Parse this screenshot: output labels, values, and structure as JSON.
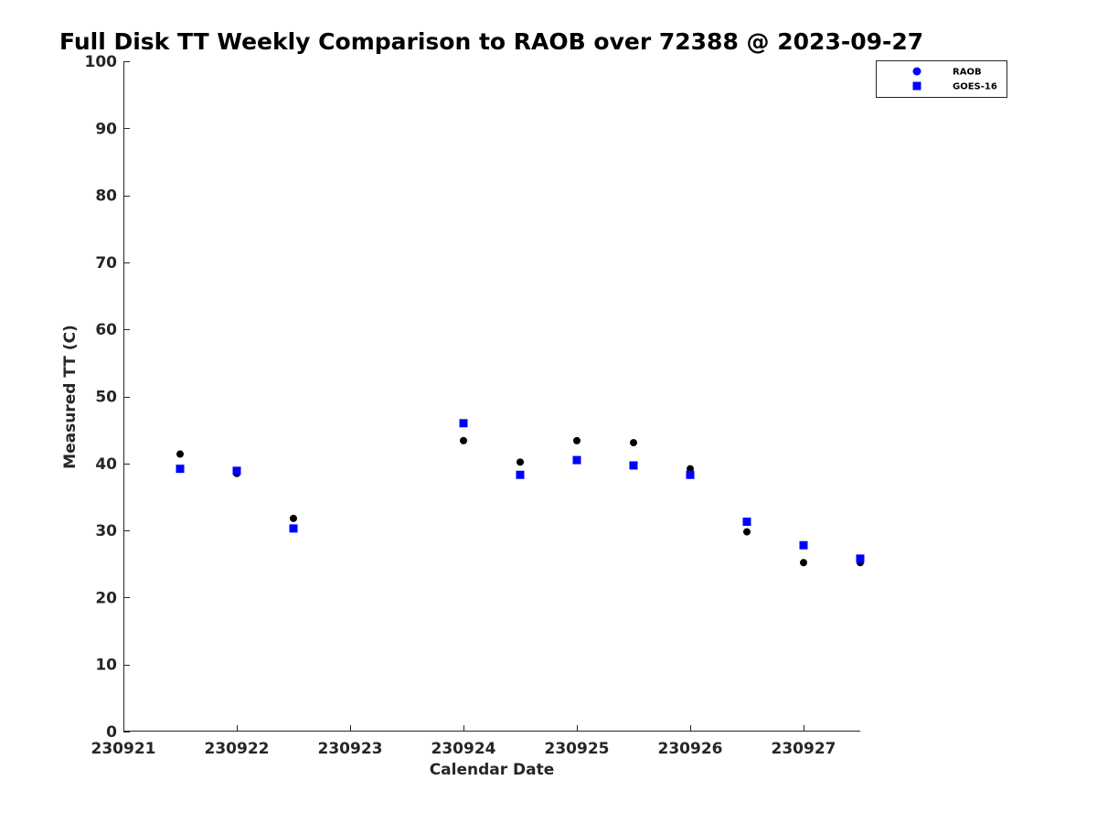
{
  "chart_data": {
    "type": "scatter",
    "title": "Full Disk TT Weekly Comparison to RAOB over 72388 @ 2023-09-27",
    "xlabel": "Calendar Date",
    "ylabel": "Measured TT (C)",
    "xlim": [
      0,
      6.5
    ],
    "ylim": [
      0,
      100
    ],
    "x_ticks": [
      0,
      1,
      2,
      3,
      4,
      5,
      6
    ],
    "x_tick_labels": [
      "230921",
      "230922",
      "230923",
      "230924",
      "230925",
      "230926",
      "230927"
    ],
    "y_ticks": [
      0,
      10,
      20,
      30,
      40,
      50,
      60,
      70,
      80,
      90,
      100
    ],
    "y_tick_labels": [
      "0",
      "10",
      "20",
      "30",
      "40",
      "50",
      "60",
      "70",
      "80",
      "90",
      "100"
    ],
    "grid": false,
    "legend_position": "top-right",
    "series": [
      {
        "name": "RAOB",
        "marker": "circle",
        "color": "#000000",
        "legend_color": "#0000ff",
        "x": [
          0.5,
          1.0,
          1.5,
          3.0,
          3.5,
          4.0,
          4.5,
          5.0,
          5.5,
          6.0,
          6.5
        ],
        "values": [
          41.4,
          38.5,
          31.8,
          43.4,
          40.2,
          43.4,
          43.1,
          39.2,
          29.8,
          25.2,
          25.2
        ]
      },
      {
        "name": "GOES-16",
        "marker": "square",
        "color": "#0000ff",
        "legend_color": "#0000ff",
        "x": [
          0.5,
          1.0,
          1.5,
          3.0,
          3.5,
          4.0,
          4.5,
          5.0,
          5.5,
          6.0,
          6.5
        ],
        "values": [
          39.2,
          38.9,
          30.3,
          46.0,
          38.3,
          40.5,
          39.7,
          38.3,
          31.3,
          27.8,
          25.8
        ]
      }
    ]
  }
}
